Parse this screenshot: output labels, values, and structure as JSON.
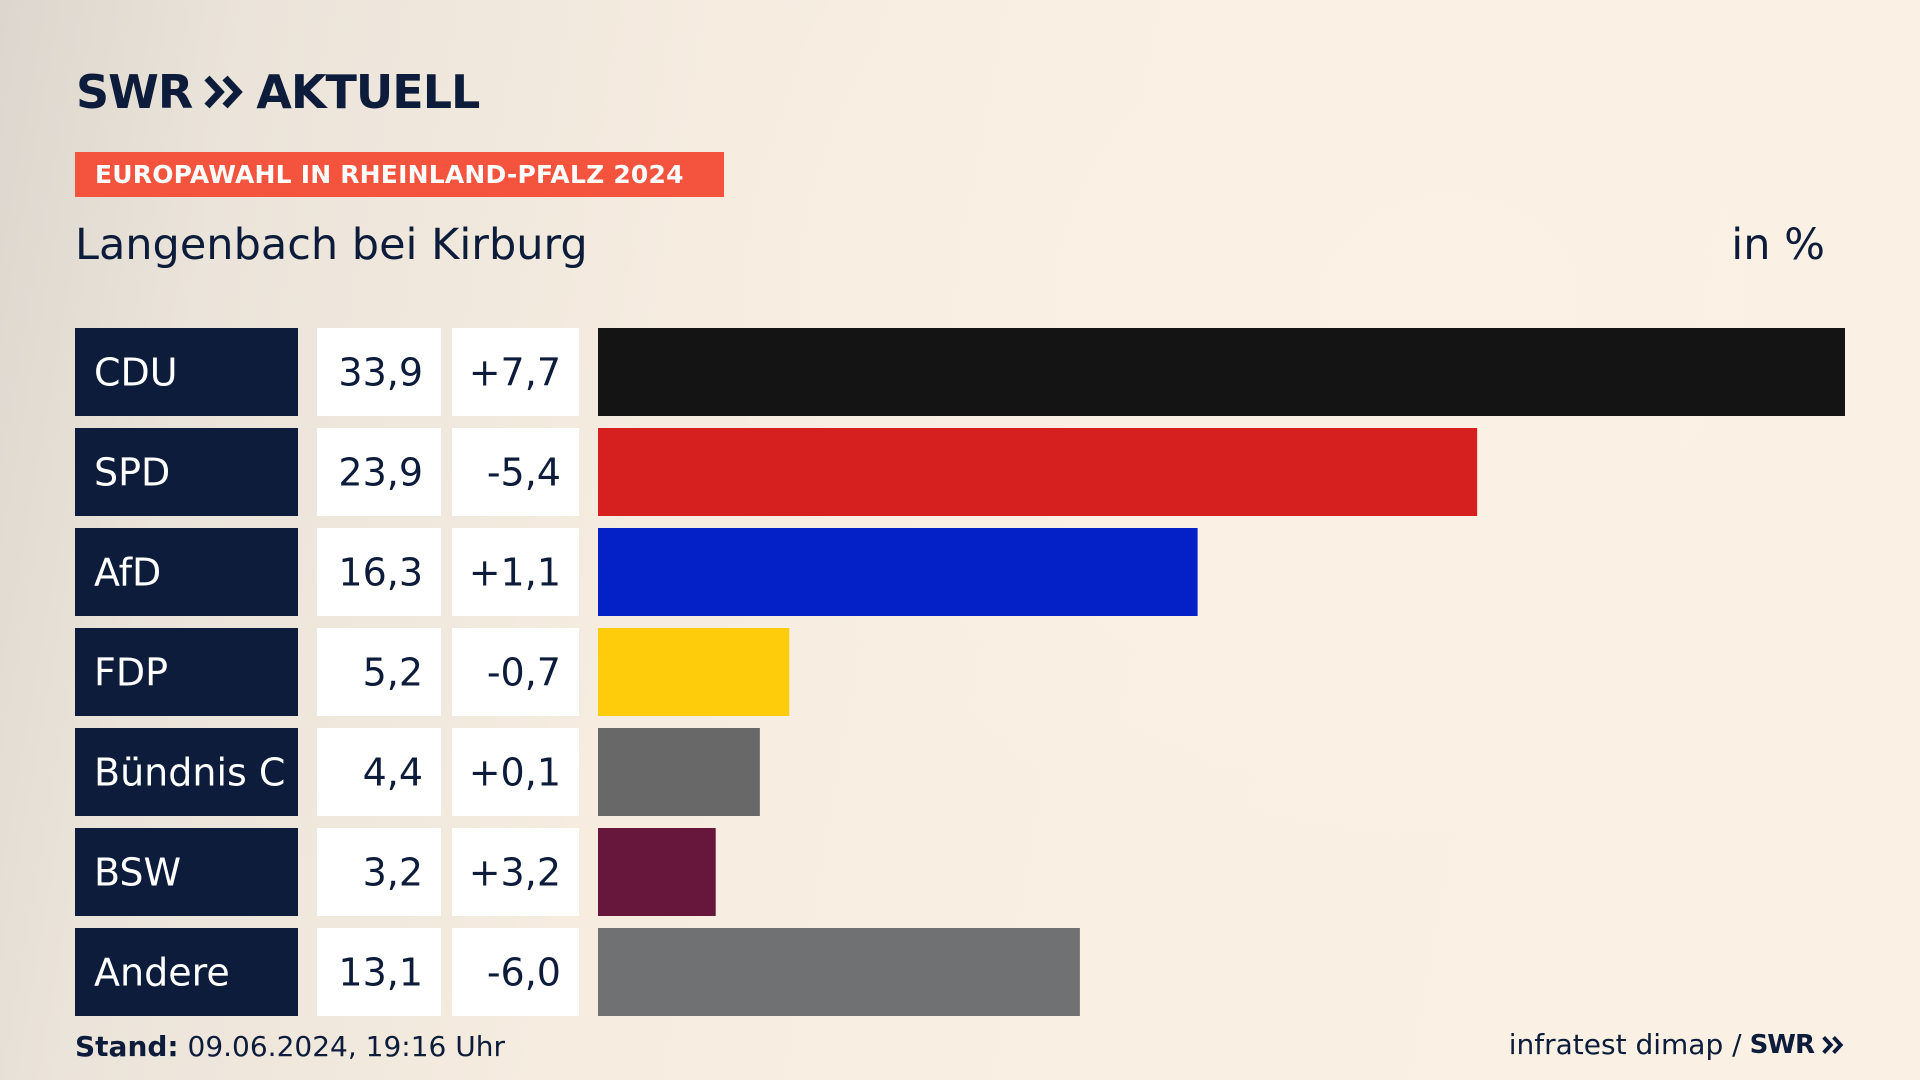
{
  "header": {
    "logo_swr": "SWR",
    "logo_aktuell": "AKTUELL",
    "banner": "EUROPAWAHL IN RHEINLAND-PFALZ 2024",
    "title": "Langenbach bei Kirburg",
    "unit": "in %"
  },
  "footer": {
    "stand_label": "Stand:",
    "stand_value": " 09.06.2024, 19:16 Uhr",
    "source": "infratest dimap /",
    "source_logo": "SWR"
  },
  "colors": {
    "label_bg": "#0c1c3a",
    "value_bg": "#ffffff",
    "banner": "#f4533d",
    "text": "#0c1c3a"
  },
  "chart_data": {
    "type": "bar",
    "orientation": "horizontal",
    "categories": [
      "CDU",
      "SPD",
      "AfD",
      "FDP",
      "Bündnis C",
      "BSW",
      "Andere"
    ],
    "values": [
      33.9,
      23.9,
      16.3,
      5.2,
      4.4,
      3.2,
      13.1
    ],
    "value_labels": [
      "33,9",
      "23,9",
      "16,3",
      "5,2",
      "4,4",
      "3,2",
      "13,1"
    ],
    "changes": [
      7.7,
      -5.4,
      1.1,
      -0.7,
      0.1,
      3.2,
      -6.0
    ],
    "change_labels": [
      "+7,7",
      "-5,4",
      "+1,1",
      "-0,7",
      "+0,1",
      "+3,2",
      "-6,0"
    ],
    "bar_colors": [
      "#141414",
      "#d62020",
      "#0420c7",
      "#fecc0a",
      "#686868",
      "#66173b",
      "#707173"
    ],
    "xlim": [
      0,
      33.9
    ]
  }
}
